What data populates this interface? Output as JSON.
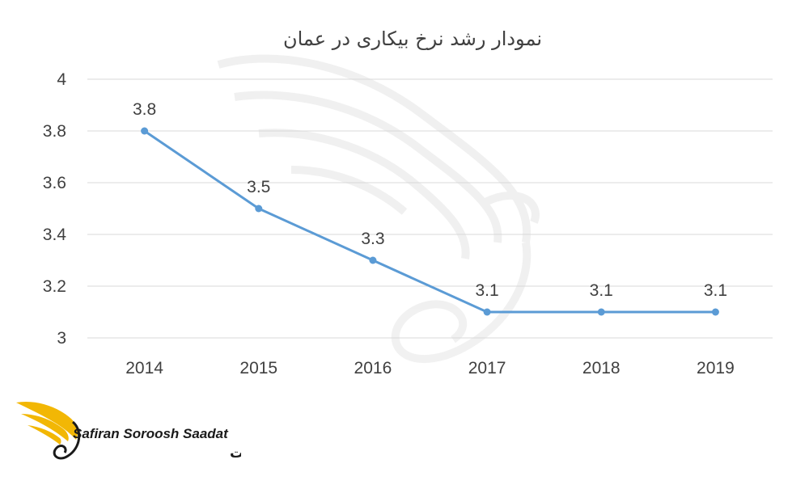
{
  "chart_data": {
    "type": "line",
    "title": "نمودار رشد نرخ بیکاری در عمان",
    "categories": [
      "2014",
      "2015",
      "2016",
      "2017",
      "2018",
      "2019"
    ],
    "series": [
      {
        "values": [
          3.8,
          3.5,
          3.3,
          3.1,
          3.1,
          3.1
        ],
        "color": "#5b9bd5"
      }
    ],
    "data_labels": [
      "3.8",
      "3.5",
      "3.3",
      "3.1",
      "3.1",
      "3.1"
    ],
    "y_ticks": [
      "3",
      "3.2",
      "3.4",
      "3.6",
      "3.8",
      "4"
    ],
    "ylim": [
      3,
      4
    ],
    "grid": true,
    "legend": "none"
  },
  "logo": {
    "name_en": "Safiran Soroosh Saadat",
    "name_fa": "سفیران سروش سعادت",
    "icon": "wing-logo-icon",
    "colors": {
      "wing": "#f2b705",
      "text": "#1a1a1a"
    }
  },
  "watermark": {
    "icon": "wing-watermark-icon"
  }
}
